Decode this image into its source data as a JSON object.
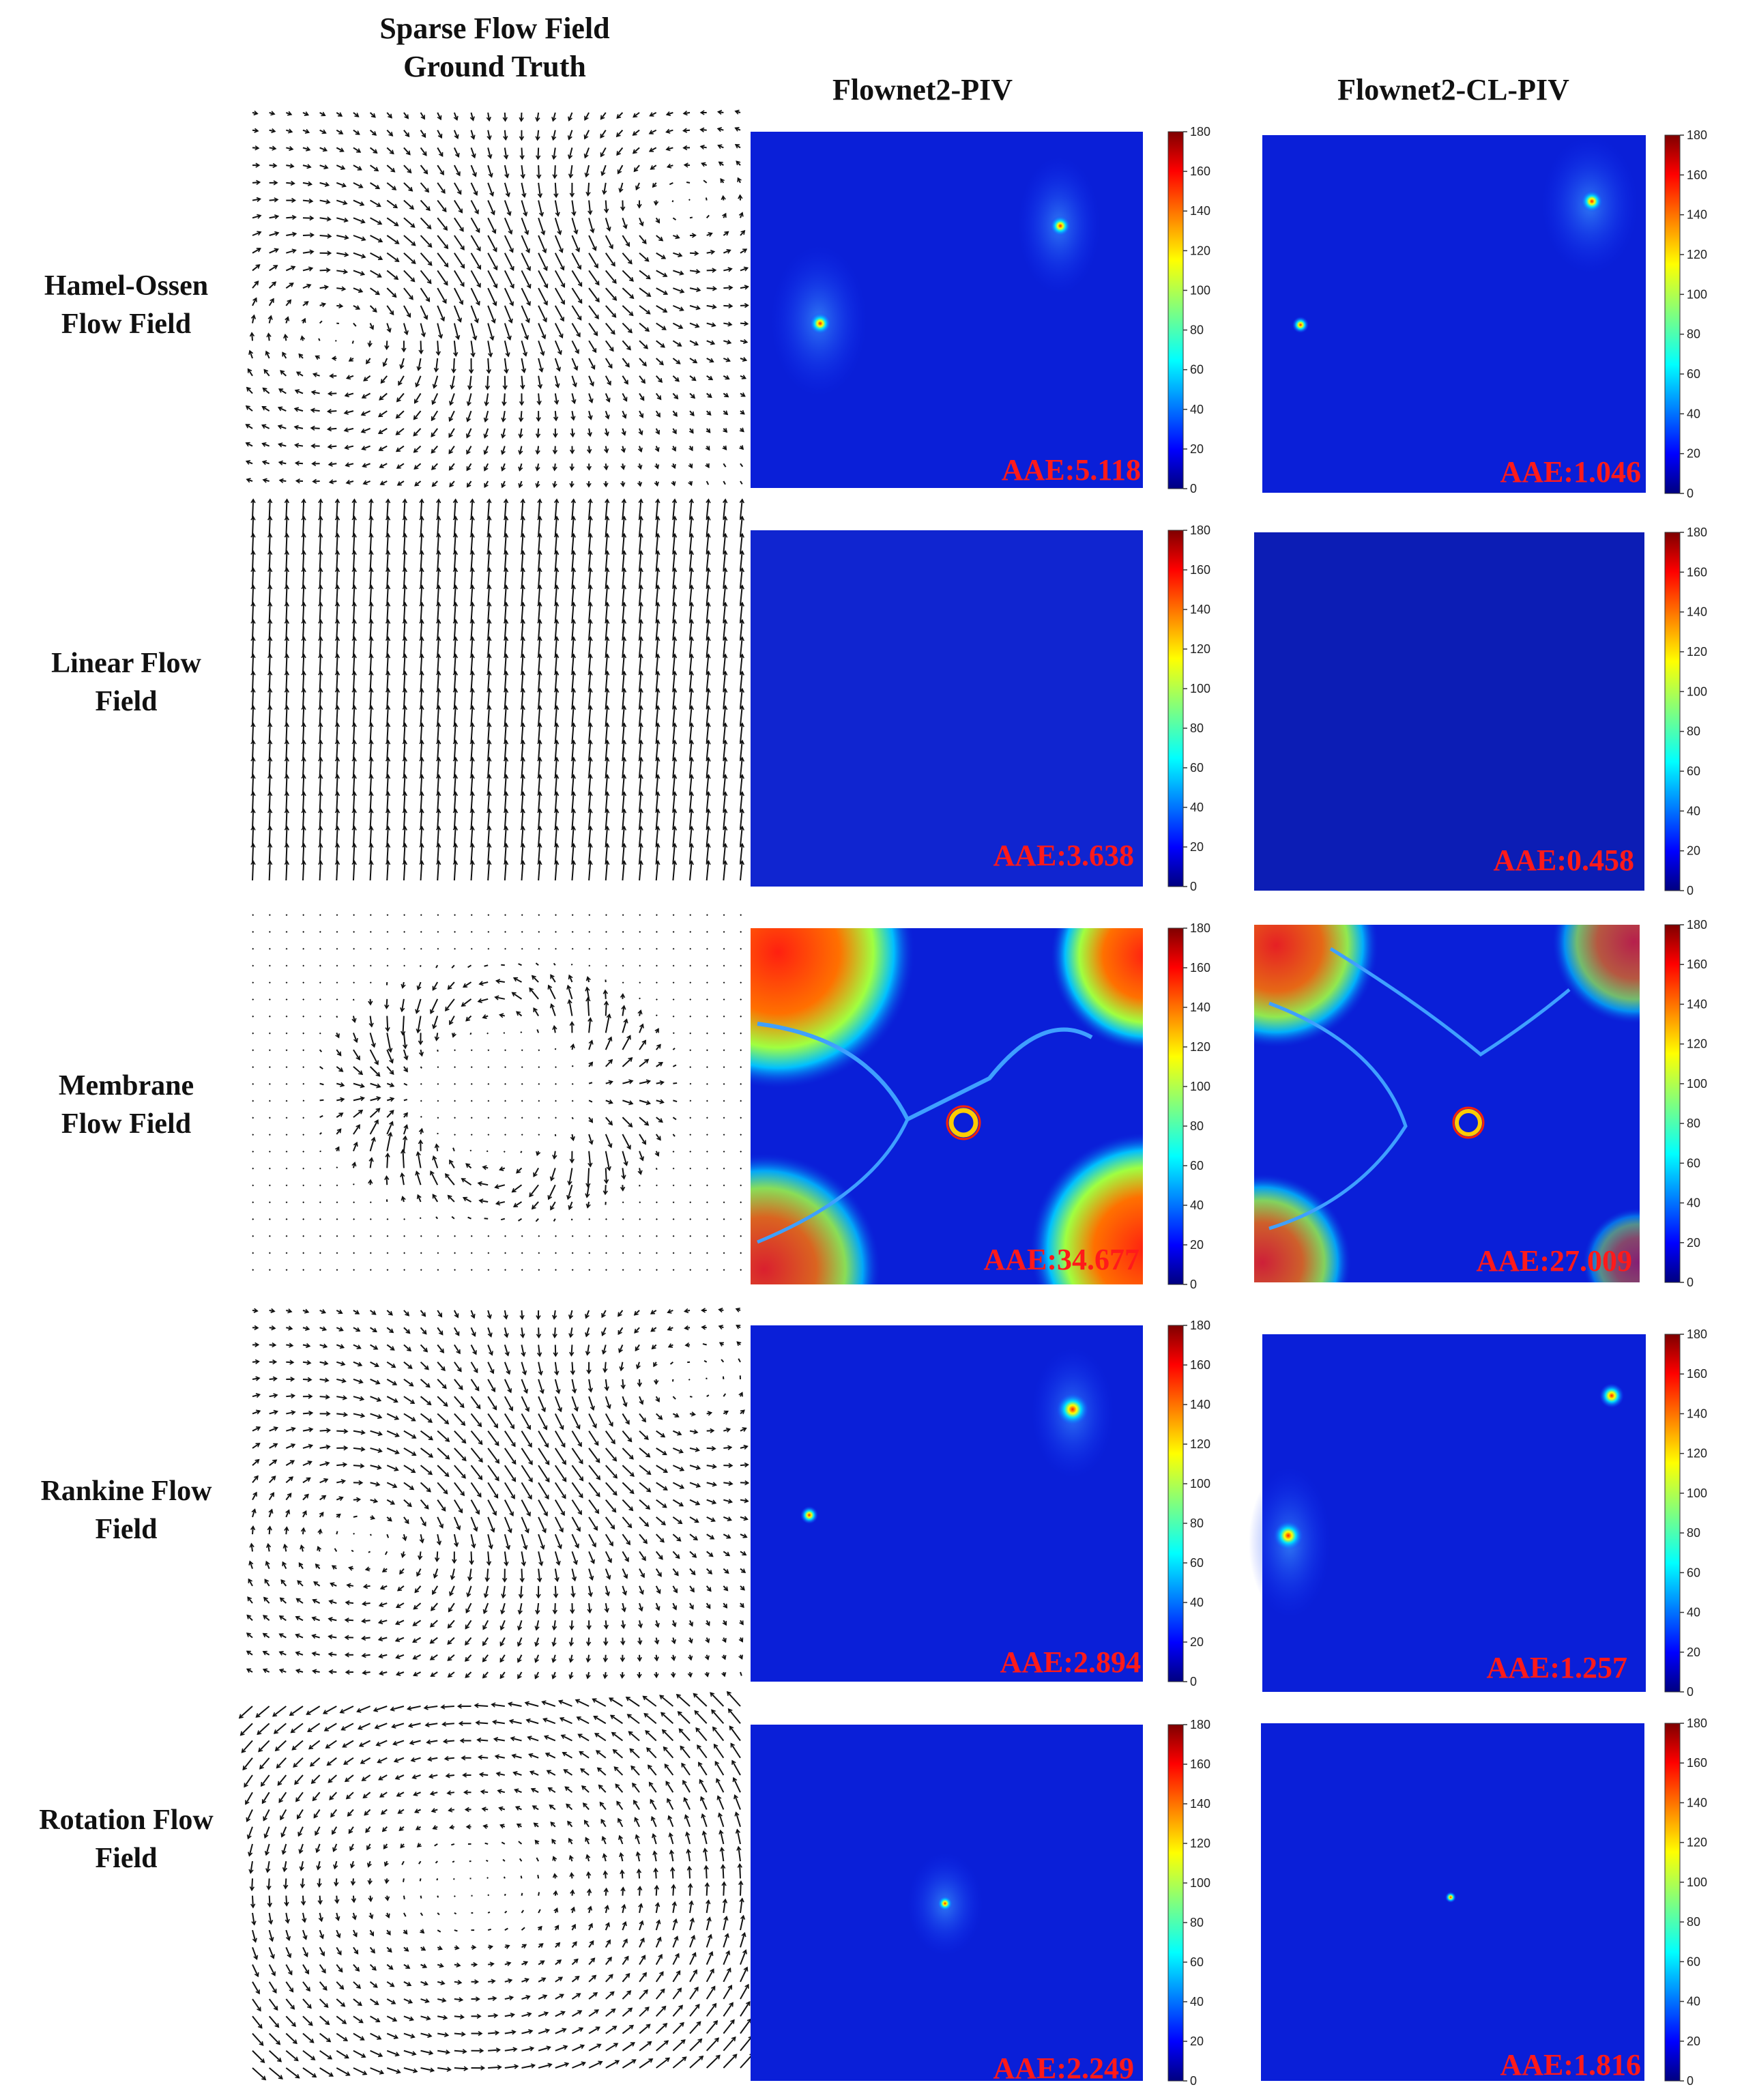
{
  "columns": {
    "ground_truth_title_line1": "Sparse Flow Field",
    "ground_truth_title_line2": "Ground Truth",
    "flownet2_title": "Flownet2-PIV",
    "flownet2cl_title": "Flownet2-CL-PIV"
  },
  "colorbar": {
    "ticks": [
      "0",
      "20",
      "40",
      "60",
      "80",
      "100",
      "120",
      "140",
      "160",
      "180"
    ],
    "range": [
      0,
      180
    ],
    "colormap": "jet"
  },
  "rows": [
    {
      "label_line1": "Hamel-Ossen",
      "label_line2": "Flow Field",
      "aae_flownet2": "AAE:5.118",
      "aae_flownet2cl": "AAE:1.046"
    },
    {
      "label_line1": "Linear Flow",
      "label_line2": "Field",
      "aae_flownet2": "AAE:3.638",
      "aae_flownet2cl": "AAE:0.458"
    },
    {
      "label_line1": "Membrane",
      "label_line2": "Flow Field",
      "aae_flownet2": "AAE:34.677",
      "aae_flownet2cl": "AAE:27.009"
    },
    {
      "label_line1": "Rankine Flow",
      "label_line2": "Field",
      "aae_flownet2": "AAE:2.894",
      "aae_flownet2cl": "AAE:1.257"
    },
    {
      "label_line1": "Rotation Flow",
      "label_line2": "Field",
      "aae_flownet2": "AAE:2.249",
      "aae_flownet2cl": "AAE:1.816"
    }
  ],
  "colors": {
    "heatmap_low": "#0a1fd8",
    "heatmap_high": "#e81208",
    "aae_text": "#ff1a1a",
    "arrow": "#111111"
  }
}
